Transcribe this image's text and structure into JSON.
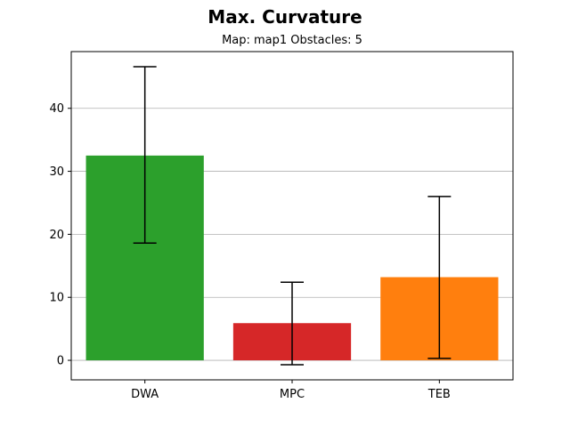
{
  "chart_data": {
    "type": "bar",
    "title": "Max. Curvature",
    "subtitle": "Map: map1 Obstacles: 5",
    "categories": [
      "DWA",
      "MPC",
      "TEB"
    ],
    "values": [
      32.5,
      5.9,
      13.2
    ],
    "error_low": [
      18.6,
      -0.7,
      0.3
    ],
    "error_high": [
      46.6,
      12.4,
      26.0
    ],
    "colors": [
      "#2ca02c",
      "#d62728",
      "#ff7f0e"
    ],
    "ylim": [
      -3.1,
      49.0
    ],
    "yticks": [
      0,
      10,
      20,
      30,
      40
    ],
    "grid": "y-axis"
  }
}
